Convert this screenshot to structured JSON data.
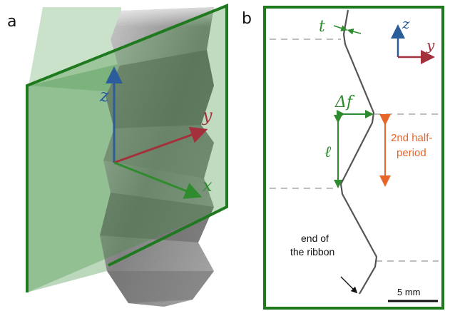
{
  "panels": {
    "a": {
      "letter": "a",
      "axes": {
        "z": "z",
        "y": "y",
        "x": "x"
      }
    },
    "b": {
      "letter": "b",
      "axes": {
        "z": "z",
        "y": "y"
      },
      "labels": {
        "thickness": "t",
        "amplitude": "Δf",
        "length": "ℓ",
        "half_period_line1": "2nd half-",
        "half_period_line2": "period",
        "end_line1": "end of",
        "end_line2": "the ribbon",
        "scale_bar": "5 mm"
      }
    }
  },
  "colors": {
    "frame_green": "#1f7a1f",
    "plane_green": "#3f8f3f",
    "axis_blue": "#2b5d9a",
    "axis_red": "#a3303a",
    "axis_green": "#2e8b2e",
    "half_period_orange": "#e8652a",
    "guide_gray": "#a8a8a8"
  }
}
